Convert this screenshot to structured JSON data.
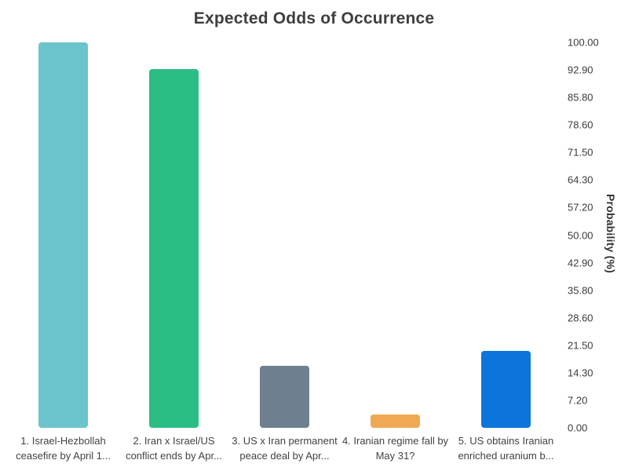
{
  "page": {
    "background_color": "#ffffff"
  },
  "chart_data": {
    "type": "bar",
    "title": "Expected Odds of Occurrence",
    "xlabel": "",
    "ylabel": "Probability (%)",
    "ylim": [
      0,
      100
    ],
    "grid": false,
    "legend": false,
    "axis_side": "right",
    "y_tick_labels_top_to_bottom": [
      "100.00",
      "92.90",
      "85.80",
      "78.60",
      "71.50",
      "64.30",
      "57.20",
      "50.00",
      "42.90",
      "35.80",
      "28.60",
      "21.50",
      "14.30",
      "7.20",
      "0.00"
    ],
    "categories": [
      [
        "1. Israel-Hezbollah",
        "ceasefire by April 1..."
      ],
      [
        "2. Iran x Israel/US",
        "conflict ends by Apr..."
      ],
      [
        "3. US x Iran permanent",
        "peace deal by Apr..."
      ],
      [
        "4. Iranian regime fall by",
        "May 31?"
      ],
      [
        "5. US obtains Iranian",
        "enriched uranium b..."
      ]
    ],
    "values": [
      100,
      93,
      16,
      3.5,
      20
    ],
    "bar_colors": [
      "#6bc4cc",
      "#2abd84",
      "#6e8090",
      "#f0a953",
      "#0b75db"
    ]
  }
}
